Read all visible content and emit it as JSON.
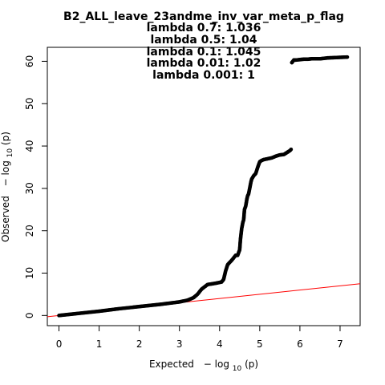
{
  "chart_data": {
    "type": "scatter",
    "title": "B2_ALL_leave_23andme_inv_var_meta_p_flag",
    "subtitle_lines": [
      "lambda 0.7: 1.036",
      "lambda 0.5: 1.04",
      "lambda 0.1: 1.045",
      "lambda 0.01: 1.02",
      "lambda 0.001: 1"
    ],
    "xlabel": {
      "prefix": "Expected",
      "minus": "−",
      "log": "log",
      "sub": "10",
      "arg": "(p)"
    },
    "ylabel": {
      "prefix": "Observed",
      "minus": "−",
      "log": "log",
      "sub": "10",
      "arg": "(p)"
    },
    "xlim": [
      -0.29,
      7.5
    ],
    "ylim": [
      -2.4,
      63.3
    ],
    "x_ticks": [
      "0",
      "1",
      "2",
      "3",
      "4",
      "5",
      "6",
      "7"
    ],
    "y_ticks": [
      "0",
      "10",
      "20",
      "30",
      "40",
      "50",
      "60"
    ],
    "grid": false,
    "legend": "none",
    "reference_line": {
      "label": "y = x",
      "color": "#ff0000",
      "slope": 1,
      "intercept": 0
    },
    "point_color": "#000000",
    "series": [
      {
        "values_x": [
          0.0,
          0.5,
          1.0,
          1.5,
          2.0,
          2.5,
          3.0,
          3.2,
          3.35,
          3.45,
          3.55,
          3.7,
          3.9,
          4.05,
          4.1,
          4.15,
          4.2,
          4.3,
          4.4,
          4.45,
          4.5,
          4.52,
          4.55,
          4.58,
          4.6,
          4.62,
          4.65,
          4.68,
          4.7,
          4.72,
          4.75,
          4.78,
          4.8,
          4.85,
          4.9,
          4.95,
          5.0,
          5.05,
          5.1,
          5.2,
          5.3,
          5.4,
          5.5,
          5.6,
          5.65,
          5.7,
          5.75,
          5.78,
          5.8,
          5.85,
          5.9,
          6.0,
          6.1,
          6.2,
          6.3,
          6.5,
          6.7,
          7.18
        ],
        "values_y": [
          0.0,
          0.5,
          1.0,
          1.6,
          2.1,
          2.6,
          3.2,
          3.6,
          4.2,
          5.0,
          6.2,
          7.3,
          7.6,
          7.9,
          8.5,
          10.5,
          12.0,
          13.0,
          14.2,
          14.2,
          15.5,
          18.0,
          20.5,
          22.0,
          22.6,
          25.0,
          25.8,
          27.5,
          28.3,
          28.6,
          30.0,
          31.5,
          32.2,
          33.0,
          33.5,
          35.0,
          36.3,
          36.6,
          36.8,
          37.0,
          37.2,
          37.6,
          37.9,
          38.0,
          38.3,
          38.6,
          38.9,
          39.2,
          59.7,
          60.3,
          60.3,
          60.4,
          60.5,
          60.5,
          60.6,
          60.6,
          60.8,
          61.0
        ]
      }
    ]
  }
}
